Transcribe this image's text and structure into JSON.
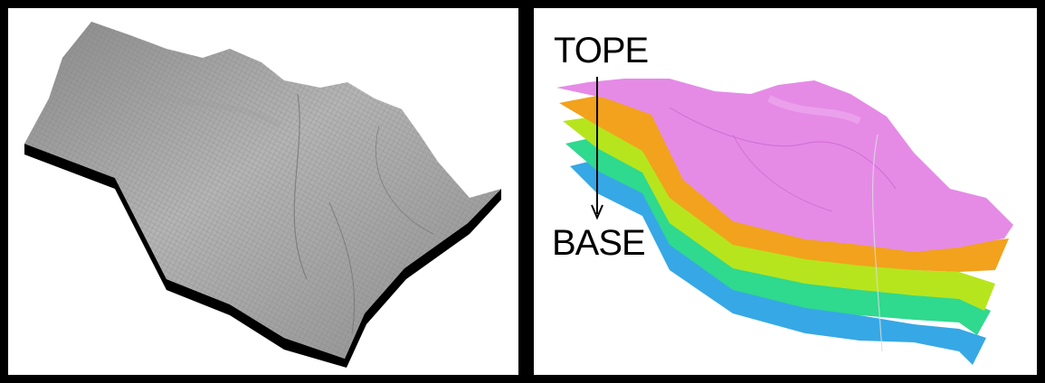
{
  "right_panel": {
    "top_label": "TOPE",
    "base_label": "BASE"
  },
  "colors": {
    "mesh_surface": "#a3a3a3",
    "mesh_shadow": "#000000",
    "layer_top": "#e58be6",
    "layer_2": "#f2a21c",
    "layer_3": "#b7e51d",
    "layer_4": "#2fd98e",
    "layer_base": "#36a8e6"
  }
}
